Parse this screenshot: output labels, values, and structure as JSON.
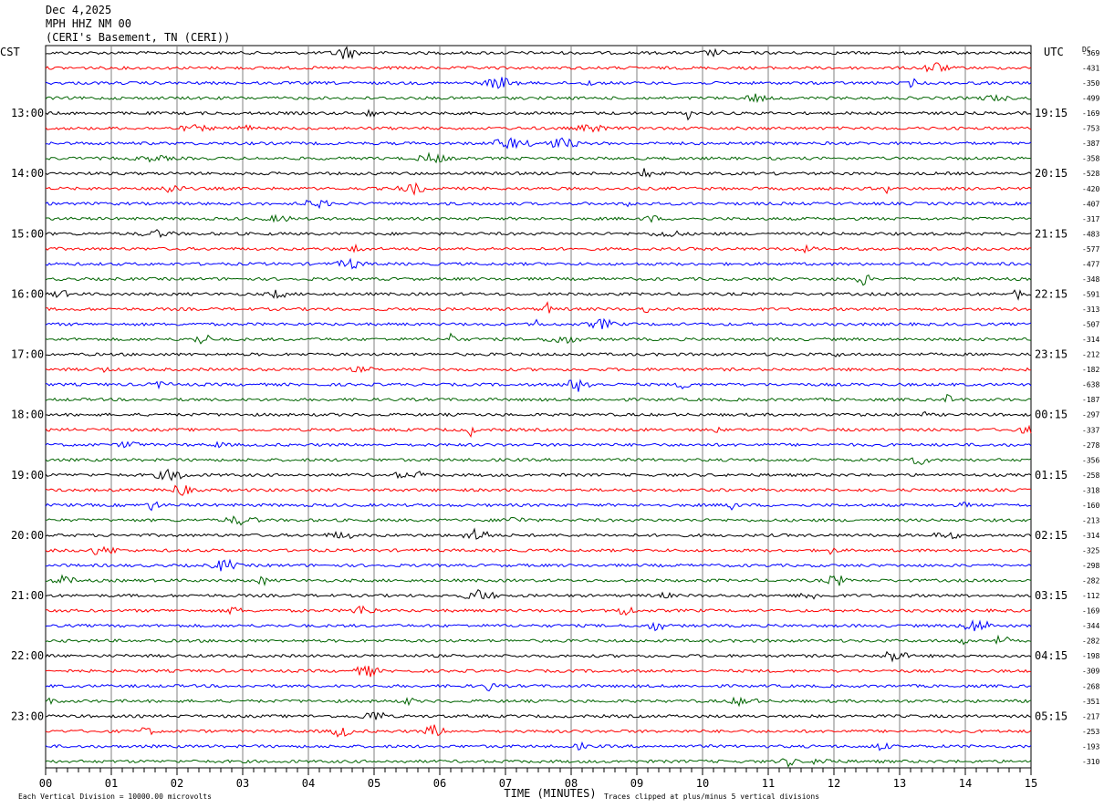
{
  "header": {
    "date": "Dec 4,2025",
    "station": "MPH HHZ NM 00",
    "location": "(CERI's Basement, TN (CERI))"
  },
  "chart_data": {
    "type": "line",
    "title": "MPH HHZ NM 00",
    "left_axis_label": "CST",
    "right_axis_label": "UTC",
    "dc_label": "DC",
    "xlabel": "TIME (MINUTES)",
    "x_ticks": [
      "00",
      "01",
      "02",
      "03",
      "04",
      "05",
      "06",
      "07",
      "08",
      "09",
      "10",
      "11",
      "12",
      "13",
      "14",
      "15"
    ],
    "xlim": [
      0,
      15
    ],
    "trace_colors": [
      "#000000",
      "#ff0000",
      "#0000ff",
      "#006400"
    ],
    "left_hour_labels": [
      "13:00",
      "14:00",
      "15:00",
      "16:00",
      "17:00",
      "18:00",
      "19:00",
      "20:00",
      "21:00",
      "22:00",
      "23:00"
    ],
    "right_hour_labels": [
      "19:15",
      "20:15",
      "21:15",
      "22:15",
      "23:15",
      "00:15",
      "01:15",
      "02:15",
      "03:15",
      "04:15",
      "05:15"
    ],
    "dc_offsets": [
      "-369",
      "-431",
      "-350",
      "-499",
      "-169",
      "-753",
      "-387",
      "-358",
      "-528",
      "-420",
      "-407",
      "-317",
      "-483",
      "-577",
      "-477",
      "-348",
      "-591",
      "-313",
      "-507",
      "-314",
      "-212",
      "-182",
      "-638",
      "-187",
      "-297",
      "-337",
      "-278",
      "-356",
      "-258",
      "-318",
      "-160",
      "-213",
      "-314",
      "-325",
      "-298",
      "-282",
      "-112",
      "-169",
      "-344",
      "-282",
      "-198",
      "-309",
      "-268",
      "-351",
      "-217",
      "-253",
      "-193",
      "-310"
    ],
    "footer_left": "Each Vertical Division = 10000.00 microvolts",
    "footer_right": "Traces clipped at plus/minus 5 vertical divisions",
    "grid": true
  }
}
